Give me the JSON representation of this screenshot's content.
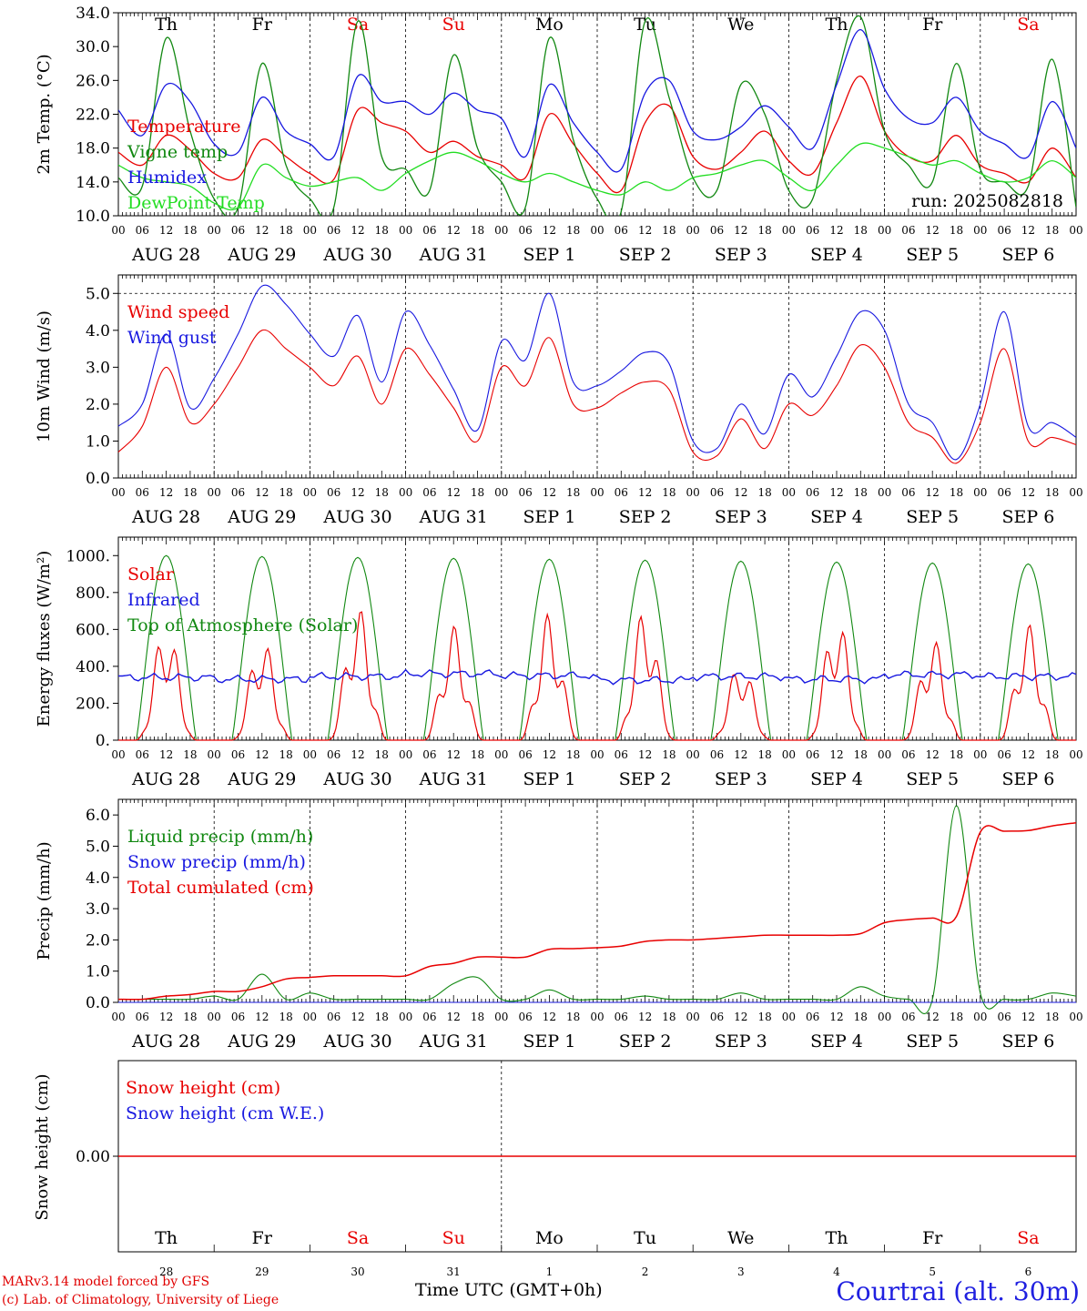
{
  "footer": {
    "model": "MARv3.14 model forced by GFS",
    "copyright": "(c) Lab. of Climatology, University of Liege",
    "xaxis_title": "Time UTC (GMT+0h)",
    "location": "Courtrai (alt. 30m)"
  },
  "run_label": "run: 2025082818",
  "days": {
    "weekdays": [
      "Th",
      "Fr",
      "Sa",
      "Su",
      "Mo",
      "Tu",
      "We",
      "Th",
      "Fr",
      "Sa"
    ],
    "weekend": [
      false,
      false,
      true,
      true,
      false,
      false,
      false,
      false,
      false,
      true
    ],
    "dates": [
      "AUG 28",
      "AUG 29",
      "AUG 30",
      "AUG 31",
      "SEP  1",
      "SEP  2",
      "SEP  3",
      "SEP  4",
      "SEP  5",
      "SEP  6"
    ],
    "day_numbers": [
      "28",
      "29",
      "30",
      "31",
      "1",
      "2",
      "3",
      "4",
      "5",
      "6"
    ],
    "hour_ticks": [
      "00",
      "06",
      "12",
      "18"
    ],
    "end_tick": "00"
  },
  "colors": {
    "red": "#e80000",
    "green": "#118811",
    "blue": "#1818e0",
    "lightgreen": "#22dd22",
    "axis": "#000000"
  },
  "chart_data": [
    {
      "type": "line",
      "ylabel": "2m Temp. (°C)",
      "ylim": [
        10,
        34
      ],
      "yticks": [
        "10.0",
        "14.0",
        "18.0",
        "22.0",
        "26.0",
        "30.0",
        "34.0"
      ],
      "x_hours": [
        0,
        6,
        12,
        18,
        24,
        30,
        36,
        42,
        48,
        54,
        60,
        66,
        72,
        78,
        84,
        90,
        96,
        102,
        108,
        114,
        120,
        126,
        132,
        138,
        144,
        150,
        156,
        162,
        168,
        174,
        180,
        186,
        192,
        198,
        204,
        210,
        216,
        222,
        228,
        234,
        240
      ],
      "series": [
        {
          "name": "Temperature",
          "color": "red",
          "values": [
            17.5,
            16.0,
            19.5,
            17.8,
            15.0,
            14.5,
            19.0,
            17.0,
            15.0,
            14.3,
            22.5,
            21.0,
            20.0,
            17.5,
            18.8,
            17.0,
            16.0,
            14.5,
            22.0,
            18.5,
            15.0,
            13.0,
            21.0,
            23.0,
            17.0,
            15.5,
            17.5,
            20.0,
            16.5,
            15.0,
            21.0,
            26.5,
            20.0,
            17.0,
            16.5,
            19.5,
            16.0,
            15.0,
            14.0,
            18.0,
            14.5
          ]
        },
        {
          "name": "Vigne temp",
          "color": "green",
          "values": [
            14.5,
            13.5,
            31.0,
            20.0,
            12.0,
            11.0,
            28.0,
            16.0,
            12.0,
            11.0,
            33.0,
            17.0,
            15.5,
            13.0,
            29.0,
            18.0,
            14.0,
            11.0,
            31.0,
            19.0,
            12.0,
            10.5,
            33.0,
            24.0,
            14.5,
            13.0,
            25.5,
            22.0,
            13.0,
            12.0,
            26.0,
            33.5,
            20.0,
            16.0,
            14.0,
            28.0,
            15.5,
            14.0,
            13.5,
            28.5,
            11.0
          ]
        },
        {
          "name": "Humidex",
          "color": "blue",
          "values": [
            22.5,
            19.5,
            25.5,
            23.5,
            18.5,
            17.5,
            24.0,
            20.0,
            18.5,
            17.0,
            26.5,
            23.5,
            23.5,
            22.0,
            24.5,
            22.5,
            21.5,
            17.0,
            25.5,
            21.0,
            17.5,
            15.5,
            24.5,
            26.0,
            20.0,
            19.0,
            20.5,
            23.0,
            20.5,
            18.0,
            25.5,
            32.0,
            25.0,
            21.5,
            21.0,
            24.0,
            20.0,
            18.5,
            17.0,
            23.5,
            18.0
          ]
        },
        {
          "name": "DewPoint Temp",
          "color": "lightgreen",
          "values": [
            16.0,
            14.5,
            14.0,
            13.5,
            11.5,
            11.0,
            16.0,
            14.5,
            13.5,
            14.0,
            14.5,
            13.0,
            15.0,
            16.5,
            17.5,
            16.5,
            15.0,
            14.0,
            15.0,
            14.0,
            13.0,
            12.5,
            14.0,
            13.0,
            14.5,
            15.0,
            16.0,
            16.5,
            14.5,
            13.0,
            16.0,
            18.5,
            18.0,
            17.0,
            16.0,
            16.5,
            15.0,
            14.0,
            14.5,
            16.5,
            14.5
          ]
        }
      ]
    },
    {
      "type": "line",
      "ylabel": "10m Wind (m/s)",
      "ylim": [
        0,
        5.5
      ],
      "yticks": [
        "0.0",
        "1.0",
        "2.0",
        "3.0",
        "4.0",
        "5.0"
      ],
      "reference_line": 5.0,
      "x_hours": [
        0,
        6,
        12,
        18,
        24,
        30,
        36,
        42,
        48,
        54,
        60,
        66,
        72,
        78,
        84,
        90,
        96,
        102,
        108,
        114,
        120,
        126,
        132,
        138,
        144,
        150,
        156,
        162,
        168,
        174,
        180,
        186,
        192,
        198,
        204,
        210,
        216,
        222,
        228,
        234,
        240
      ],
      "series": [
        {
          "name": "Wind speed",
          "color": "red",
          "values": [
            0.7,
            1.4,
            3.0,
            1.5,
            2.0,
            3.0,
            4.0,
            3.5,
            3.0,
            2.5,
            3.3,
            2.0,
            3.5,
            2.8,
            1.9,
            1.0,
            3.0,
            2.5,
            3.8,
            2.0,
            1.9,
            2.3,
            2.6,
            2.4,
            0.7,
            0.6,
            1.6,
            0.8,
            2.0,
            1.7,
            2.5,
            3.6,
            3.0,
            1.5,
            1.1,
            0.4,
            1.5,
            3.5,
            1.0,
            1.1,
            0.9
          ]
        },
        {
          "name": "Wind gust",
          "color": "blue",
          "values": [
            1.4,
            2.0,
            3.9,
            1.9,
            2.7,
            3.9,
            5.2,
            4.7,
            3.9,
            3.3,
            4.4,
            2.6,
            4.5,
            3.6,
            2.4,
            1.3,
            3.7,
            3.2,
            5.0,
            2.6,
            2.5,
            2.9,
            3.4,
            3.1,
            1.0,
            0.8,
            2.0,
            1.2,
            2.8,
            2.2,
            3.3,
            4.5,
            4.0,
            2.0,
            1.5,
            0.5,
            2.0,
            4.5,
            1.4,
            1.5,
            1.1
          ]
        }
      ]
    },
    {
      "type": "line",
      "ylabel": "Energy fluxes (W/m²)",
      "ylim": [
        0,
        1100
      ],
      "yticks": [
        "0.",
        "200.",
        "400.",
        "600.",
        "800.",
        "1000."
      ],
      "days_peak_toa": [
        1000,
        995,
        990,
        985,
        980,
        975,
        970,
        965,
        960,
        955
      ],
      "days_peak_solar": [
        630,
        560,
        730,
        620,
        690,
        720,
        430,
        680,
        560,
        630
      ],
      "infrared_daily": [
        340,
        330,
        345,
        360,
        350,
        325,
        345,
        330,
        355,
        345
      ],
      "series": [
        {
          "name": "Solar",
          "color": "red"
        },
        {
          "name": "Infrared",
          "color": "blue"
        },
        {
          "name": "Top of Atmosphere (Solar)",
          "color": "green"
        }
      ]
    },
    {
      "type": "line",
      "ylabel": "Precip (mm/h)",
      "ylim": [
        0,
        6.5
      ],
      "yticks": [
        "0.0",
        "1.0",
        "2.0",
        "3.0",
        "4.0",
        "5.0",
        "6.0"
      ],
      "x_hours": [
        0,
        6,
        12,
        18,
        24,
        30,
        36,
        42,
        48,
        54,
        60,
        66,
        72,
        78,
        84,
        90,
        96,
        102,
        108,
        114,
        120,
        126,
        132,
        138,
        144,
        150,
        156,
        162,
        168,
        174,
        180,
        186,
        192,
        198,
        204,
        210,
        216,
        222,
        228,
        234,
        240
      ],
      "series": [
        {
          "name": "Liquid precip (mm/h)",
          "color": "green",
          "values": [
            0.1,
            0.1,
            0.1,
            0.1,
            0.2,
            0.1,
            0.9,
            0.1,
            0.3,
            0.1,
            0.1,
            0.1,
            0.1,
            0.1,
            0.6,
            0.8,
            0.1,
            0.1,
            0.4,
            0.1,
            0.1,
            0.1,
            0.2,
            0.1,
            0.1,
            0.1,
            0.3,
            0.1,
            0.1,
            0.1,
            0.1,
            0.5,
            0.2,
            0.1,
            0.1,
            6.3,
            0.3,
            0.1,
            0.1,
            0.3,
            0.2
          ]
        },
        {
          "name": "Snow precip (mm/h)",
          "color": "blue",
          "values": [
            0,
            0,
            0,
            0,
            0,
            0,
            0,
            0,
            0,
            0,
            0,
            0,
            0,
            0,
            0,
            0,
            0,
            0,
            0,
            0,
            0,
            0,
            0,
            0,
            0,
            0,
            0,
            0,
            0,
            0,
            0,
            0,
            0,
            0,
            0,
            0,
            0,
            0,
            0,
            0,
            0
          ]
        },
        {
          "name": "Total cumulated (cm)",
          "color": "red",
          "values": [
            0.1,
            0.1,
            0.2,
            0.25,
            0.35,
            0.35,
            0.5,
            0.75,
            0.8,
            0.85,
            0.85,
            0.85,
            0.85,
            1.15,
            1.25,
            1.45,
            1.45,
            1.45,
            1.7,
            1.72,
            1.75,
            1.8,
            1.95,
            2.0,
            2.0,
            2.05,
            2.1,
            2.15,
            2.15,
            2.15,
            2.15,
            2.2,
            2.55,
            2.65,
            2.7,
            2.75,
            5.45,
            5.48,
            5.5,
            5.65,
            5.75
          ]
        }
      ]
    },
    {
      "type": "line",
      "ylabel": "Snow height (cm)",
      "yticks": [
        "0.00"
      ],
      "series": [
        {
          "name": "Snow height (cm)",
          "color": "red",
          "values": [
            0,
            0
          ]
        },
        {
          "name": "Snow height (cm W.E.)",
          "color": "blue",
          "values": [
            0,
            0
          ]
        }
      ]
    }
  ]
}
